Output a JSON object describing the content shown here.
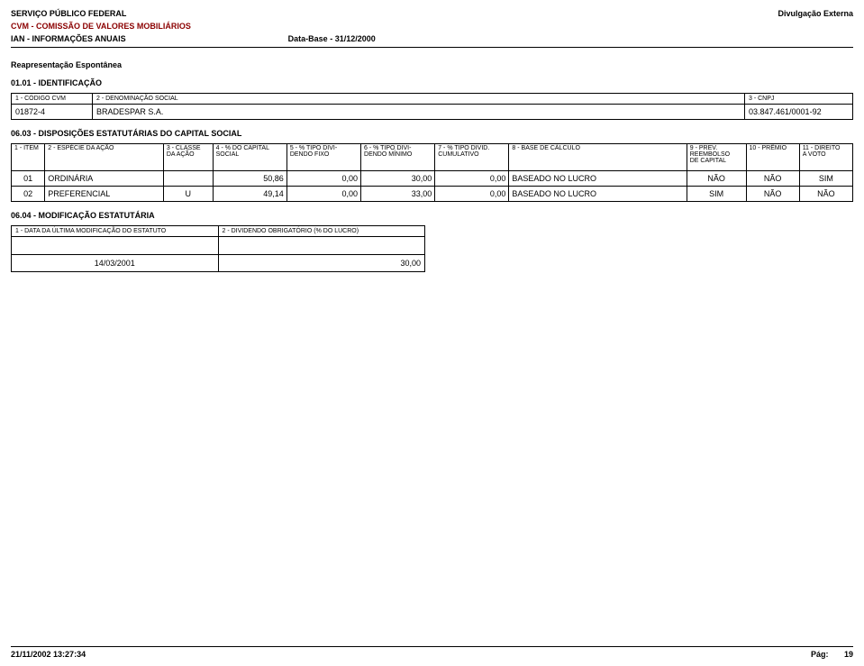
{
  "header": {
    "org": "SERVIÇO PÚBLICO FEDERAL",
    "right": "Divulgação Externa",
    "cvm": "CVM - COMISSÃO DE VALORES MOBILIÁRIOS",
    "ian": "IAN - INFORMAÇÕES ANUAIS",
    "database": "Data-Base - 31/12/2000"
  },
  "subheading": "Reapresentação Espontânea",
  "section_ident_title": "01.01 - IDENTIFICAÇÃO",
  "ident": {
    "h_code": "1 - CÓDIGO CVM",
    "h_denom": "2 - DENOMINAÇÃO SOCIAL",
    "h_cnpj": "3 - CNPJ",
    "code": "01872-4",
    "denom": "BRADESPAR S.A.",
    "cnpj": "03.847.461/0001-92"
  },
  "section_disp_title": "06.03 - DISPOSIÇÕES ESTATUTÁRIAS DO CAPITAL SOCIAL",
  "cap": {
    "h1": "1 - ITEM",
    "h2": "2 - ESPÉCIE DA AÇÃO",
    "h3a": "3 - CLASSE",
    "h3b": "DA AÇÃO",
    "h4a": "4 - % DO CAPITAL",
    "h4b": "SOCIAL",
    "h5a": "5 - % TIPO DIVI-",
    "h5b": "DENDO FIXO",
    "h6a": "6 - % TIPO DIVI-",
    "h6b": "DENDO MÍNIMO",
    "h7a": "7 - % TIPO DIVID.",
    "h7b": "CUMULATIVO",
    "h8": "8 - BASE DE CÁLCULO",
    "h9a": "9 - PREV.",
    "h9b": "REEMBOLSO",
    "h9c": "DE CAPITAL",
    "h10": "10 - PRÊMIO",
    "h11a": "11 - DIREITO",
    "h11b": "A VOTO",
    "rows": [
      {
        "item": "01",
        "especie": "ORDINÁRIA",
        "classe": "",
        "pct_cap": "50,86",
        "fixo": "0,00",
        "minimo": "30,00",
        "cumul": "0,00",
        "base": "BASEADO NO LUCRO",
        "prev": "NÃO",
        "premio": "NÃO",
        "voto": "SIM"
      },
      {
        "item": "02",
        "especie": "PREFERENCIAL",
        "classe": "U",
        "pct_cap": "49,14",
        "fixo": "0,00",
        "minimo": "33,00",
        "cumul": "0,00",
        "base": "BASEADO NO LUCRO",
        "prev": "SIM",
        "premio": "NÃO",
        "voto": "NÃO"
      }
    ]
  },
  "section_mod_title": "06.04 - MODIFICAÇÃO ESTATUTÁRIA",
  "mod": {
    "h1": "1 - DATA DA ÚLTIMA MODIFICAÇÃO DO ESTATUTO",
    "h2": "2 - DIVIDENDO OBRIGATÓRIO (% DO LUCRO)",
    "date": "14/03/2001",
    "pct": "30,00"
  },
  "footer": {
    "ts": "21/11/2002 13:27:34",
    "page_label": "Pág:",
    "page_num": "19"
  }
}
